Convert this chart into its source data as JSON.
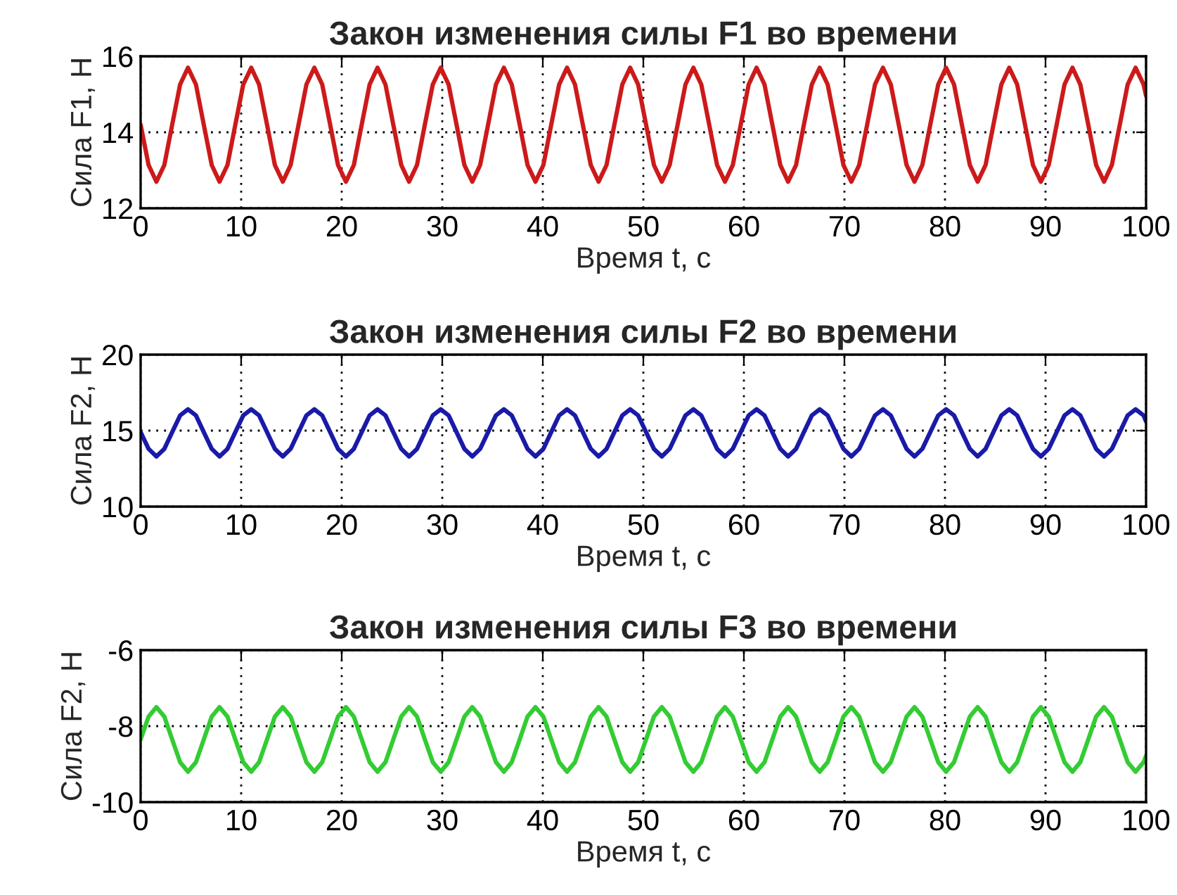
{
  "chart_data": [
    {
      "type": "line",
      "title": "Закон изменения силы F1 во времени",
      "xlabel": "Время t, c",
      "ylabel": "Сила F1, Н",
      "x": [
        0,
        0.79,
        1.57,
        2.36,
        3.14,
        3.93,
        4.71,
        5.5,
        6.28,
        7.07,
        7.85,
        8.64,
        9.42,
        10.21,
        11.0,
        11.78,
        12.57,
        13.35,
        14.14,
        14.92,
        15.71,
        16.49,
        17.28,
        18.06,
        18.85,
        19.63,
        20.42,
        21.21,
        21.99,
        22.78,
        23.56,
        24.35,
        25.13,
        25.92,
        26.7,
        27.49,
        28.27,
        29.06,
        29.85,
        30.63,
        31.42,
        32.2,
        32.99,
        33.77,
        34.56,
        35.34,
        36.13,
        36.91,
        37.7,
        38.48,
        39.27,
        40.06,
        40.84,
        41.63,
        42.41,
        43.2,
        43.98,
        44.77,
        45.55,
        46.34,
        47.12,
        47.91,
        48.69,
        49.48,
        50.27,
        51.05,
        51.84,
        52.62,
        53.41,
        54.19,
        54.98,
        55.76,
        56.55,
        57.33,
        58.12,
        58.9,
        59.69,
        60.48,
        61.26,
        62.05,
        62.83,
        63.62,
        64.4,
        65.19,
        65.97,
        66.76,
        67.54,
        68.33,
        69.12,
        69.9,
        70.69,
        71.47,
        72.26,
        73.04,
        73.83,
        74.61,
        75.4,
        76.18,
        76.97,
        77.75,
        78.54,
        79.33,
        80.11,
        80.9,
        81.68,
        82.47,
        83.25,
        84.04,
        84.82,
        85.61,
        86.39,
        87.18,
        87.96,
        88.75,
        89.54,
        90.32,
        91.11,
        91.89,
        92.68,
        93.46,
        94.25,
        95.03,
        95.82,
        96.6,
        97.39,
        98.17,
        98.96,
        99.75,
        100
      ],
      "series": [
        {
          "color": "#cc1a1a",
          "values": [
            14.2,
            13.14,
            12.7,
            13.14,
            14.2,
            15.26,
            15.7,
            15.26,
            14.2,
            13.14,
            12.7,
            13.14,
            14.2,
            15.26,
            15.7,
            15.26,
            14.2,
            13.14,
            12.7,
            13.14,
            14.2,
            15.26,
            15.7,
            15.26,
            14.2,
            13.14,
            12.7,
            13.14,
            14.2,
            15.26,
            15.7,
            15.26,
            14.2,
            13.14,
            12.7,
            13.14,
            14.2,
            15.26,
            15.7,
            15.26,
            14.2,
            13.14,
            12.7,
            13.14,
            14.2,
            15.26,
            15.7,
            15.26,
            14.2,
            13.14,
            12.7,
            13.14,
            14.2,
            15.26,
            15.7,
            15.26,
            14.2,
            13.14,
            12.7,
            13.14,
            14.2,
            15.26,
            15.7,
            15.26,
            14.2,
            13.14,
            12.7,
            13.14,
            14.2,
            15.26,
            15.7,
            15.26,
            14.2,
            13.14,
            12.7,
            13.14,
            14.2,
            15.26,
            15.7,
            15.26,
            14.2,
            13.14,
            12.7,
            13.14,
            14.2,
            15.26,
            15.7,
            15.26,
            14.2,
            13.14,
            12.7,
            13.14,
            14.2,
            15.26,
            15.7,
            15.26,
            14.2,
            13.14,
            12.7,
            13.14,
            14.2,
            15.26,
            15.7,
            15.26,
            14.2,
            13.14,
            12.7,
            13.14,
            14.2,
            15.26,
            15.7,
            15.26,
            14.2,
            13.14,
            12.7,
            13.14,
            14.2,
            15.26,
            15.7,
            15.26,
            14.2,
            13.14,
            12.7,
            13.14,
            14.2,
            15.26,
            15.7,
            15.26,
            14.96
          ]
        }
      ],
      "xlim": [
        0,
        100
      ],
      "ylim": [
        12,
        16
      ],
      "xticks": [
        0,
        10,
        20,
        30,
        40,
        50,
        60,
        70,
        80,
        90,
        100
      ],
      "yticks": [
        12,
        14,
        16
      ],
      "grid": true,
      "line_style": "solid"
    },
    {
      "type": "line",
      "title": "Закон изменения силы F2 во времени",
      "xlabel": "Время t, c",
      "ylabel": "Сила F2, Н",
      "x": [
        0,
        0.79,
        1.57,
        2.36,
        3.14,
        3.93,
        4.71,
        5.5,
        6.28,
        7.07,
        7.85,
        8.64,
        9.42,
        10.21,
        11.0,
        11.78,
        12.57,
        13.35,
        14.14,
        14.92,
        15.71,
        16.49,
        17.28,
        18.06,
        18.85,
        19.63,
        20.42,
        21.21,
        21.99,
        22.78,
        23.56,
        24.35,
        25.13,
        25.92,
        26.7,
        27.49,
        28.27,
        29.06,
        29.85,
        30.63,
        31.42,
        32.2,
        32.99,
        33.77,
        34.56,
        35.34,
        36.13,
        36.91,
        37.7,
        38.48,
        39.27,
        40.06,
        40.84,
        41.63,
        42.41,
        43.2,
        43.98,
        44.77,
        45.55,
        46.34,
        47.12,
        47.91,
        48.69,
        49.48,
        50.27,
        51.05,
        51.84,
        52.62,
        53.41,
        54.19,
        54.98,
        55.76,
        56.55,
        57.33,
        58.12,
        58.9,
        59.69,
        60.48,
        61.26,
        62.05,
        62.83,
        63.62,
        64.4,
        65.19,
        65.97,
        66.76,
        67.54,
        68.33,
        69.12,
        69.9,
        70.69,
        71.47,
        72.26,
        73.04,
        73.83,
        74.61,
        75.4,
        76.18,
        76.97,
        77.75,
        78.54,
        79.33,
        80.11,
        80.9,
        81.68,
        82.47,
        83.25,
        84.04,
        84.82,
        85.61,
        86.39,
        87.18,
        87.96,
        88.75,
        89.54,
        90.32,
        91.11,
        91.89,
        92.68,
        93.46,
        94.25,
        95.03,
        95.82,
        96.6,
        97.39,
        98.17,
        98.96,
        99.75,
        100
      ],
      "series": [
        {
          "color": "#1a1aa8",
          "values": [
            14.9,
            13.8,
            13.3,
            13.8,
            14.9,
            16.0,
            16.4,
            16.0,
            14.9,
            13.8,
            13.3,
            13.8,
            14.9,
            16.0,
            16.4,
            16.0,
            14.9,
            13.8,
            13.3,
            13.8,
            14.9,
            16.0,
            16.4,
            16.0,
            14.9,
            13.8,
            13.3,
            13.8,
            14.9,
            16.0,
            16.4,
            16.0,
            14.9,
            13.8,
            13.3,
            13.8,
            14.9,
            16.0,
            16.4,
            16.0,
            14.9,
            13.8,
            13.3,
            13.8,
            14.9,
            16.0,
            16.4,
            16.0,
            14.9,
            13.8,
            13.3,
            13.8,
            14.9,
            16.0,
            16.4,
            16.0,
            14.9,
            13.8,
            13.3,
            13.8,
            14.9,
            16.0,
            16.4,
            16.0,
            14.9,
            13.8,
            13.3,
            13.8,
            14.9,
            16.0,
            16.4,
            16.0,
            14.9,
            13.8,
            13.3,
            13.8,
            14.9,
            16.0,
            16.4,
            16.0,
            14.9,
            13.8,
            13.3,
            13.8,
            14.9,
            16.0,
            16.4,
            16.0,
            14.9,
            13.8,
            13.3,
            13.8,
            14.9,
            16.0,
            16.4,
            16.0,
            14.9,
            13.8,
            13.3,
            13.8,
            14.9,
            16.0,
            16.4,
            16.0,
            14.9,
            13.8,
            13.3,
            13.8,
            14.9,
            16.0,
            16.4,
            16.0,
            14.9,
            13.8,
            13.3,
            13.8,
            14.9,
            16.0,
            16.4,
            16.0,
            14.9,
            13.8,
            13.3,
            13.8,
            14.9,
            16.0,
            16.4,
            16.0,
            15.6
          ]
        }
      ],
      "xlim": [
        0,
        100
      ],
      "ylim": [
        10,
        20
      ],
      "xticks": [
        0,
        10,
        20,
        30,
        40,
        50,
        60,
        70,
        80,
        90,
        100
      ],
      "yticks": [
        10,
        15,
        20
      ],
      "grid": true,
      "line_style": "solid"
    },
    {
      "type": "line",
      "title": "Закон изменения силы F3 во времени",
      "xlabel": "Время t, c",
      "ylabel": "Сила F2, Н",
      "x": [
        0,
        0.79,
        1.57,
        2.36,
        3.14,
        3.93,
        4.71,
        5.5,
        6.28,
        7.07,
        7.85,
        8.64,
        9.42,
        10.21,
        11.0,
        11.78,
        12.57,
        13.35,
        14.14,
        14.92,
        15.71,
        16.49,
        17.28,
        18.06,
        18.85,
        19.63,
        20.42,
        21.21,
        21.99,
        22.78,
        23.56,
        24.35,
        25.13,
        25.92,
        26.7,
        27.49,
        28.27,
        29.06,
        29.85,
        30.63,
        31.42,
        32.2,
        32.99,
        33.77,
        34.56,
        35.34,
        36.13,
        36.91,
        37.7,
        38.48,
        39.27,
        40.06,
        40.84,
        41.63,
        42.41,
        43.2,
        43.98,
        44.77,
        45.55,
        46.34,
        47.12,
        47.91,
        48.69,
        49.48,
        50.27,
        51.05,
        51.84,
        52.62,
        53.41,
        54.19,
        54.98,
        55.76,
        56.55,
        57.33,
        58.12,
        58.9,
        59.69,
        60.48,
        61.26,
        62.05,
        62.83,
        63.62,
        64.4,
        65.19,
        65.97,
        66.76,
        67.54,
        68.33,
        69.12,
        69.9,
        70.69,
        71.47,
        72.26,
        73.04,
        73.83,
        74.61,
        75.4,
        76.18,
        76.97,
        77.75,
        78.54,
        79.33,
        80.11,
        80.9,
        81.68,
        82.47,
        83.25,
        84.04,
        84.82,
        85.61,
        86.39,
        87.18,
        87.96,
        88.75,
        89.54,
        90.32,
        91.11,
        91.89,
        92.68,
        93.46,
        94.25,
        95.03,
        95.82,
        96.6,
        97.39,
        98.17,
        98.96,
        99.75,
        100
      ],
      "series": [
        {
          "color": "#33cc33",
          "values": [
            -8.35,
            -7.75,
            -7.5,
            -7.75,
            -8.35,
            -8.95,
            -9.2,
            -8.95,
            -8.35,
            -7.75,
            -7.5,
            -7.75,
            -8.35,
            -8.95,
            -9.2,
            -8.95,
            -8.35,
            -7.75,
            -7.5,
            -7.75,
            -8.35,
            -8.95,
            -9.2,
            -8.95,
            -8.35,
            -7.75,
            -7.5,
            -7.75,
            -8.35,
            -8.95,
            -9.2,
            -8.95,
            -8.35,
            -7.75,
            -7.5,
            -7.75,
            -8.35,
            -8.95,
            -9.2,
            -8.95,
            -8.35,
            -7.75,
            -7.5,
            -7.75,
            -8.35,
            -8.95,
            -9.2,
            -8.95,
            -8.35,
            -7.75,
            -7.5,
            -7.75,
            -8.35,
            -8.95,
            -9.2,
            -8.95,
            -8.35,
            -7.75,
            -7.5,
            -7.75,
            -8.35,
            -8.95,
            -9.2,
            -8.95,
            -8.35,
            -7.75,
            -7.5,
            -7.75,
            -8.35,
            -8.95,
            -9.2,
            -8.95,
            -8.35,
            -7.75,
            -7.5,
            -7.75,
            -8.35,
            -8.95,
            -9.2,
            -8.95,
            -8.35,
            -7.75,
            -7.5,
            -7.75,
            -8.35,
            -8.95,
            -9.2,
            -8.95,
            -8.35,
            -7.75,
            -7.5,
            -7.75,
            -8.35,
            -8.95,
            -9.2,
            -8.95,
            -8.35,
            -7.75,
            -7.5,
            -7.75,
            -8.35,
            -8.95,
            -9.2,
            -8.95,
            -8.35,
            -7.75,
            -7.5,
            -7.75,
            -8.35,
            -8.95,
            -9.2,
            -8.95,
            -8.35,
            -7.75,
            -7.5,
            -7.75,
            -8.35,
            -8.95,
            -9.2,
            -8.95,
            -8.35,
            -7.75,
            -7.5,
            -7.75,
            -8.35,
            -8.95,
            -9.2,
            -8.95,
            -8.78
          ]
        }
      ],
      "xlim": [
        0,
        100
      ],
      "ylim": [
        -10,
        -6
      ],
      "xticks": [
        0,
        10,
        20,
        30,
        40,
        50,
        60,
        70,
        80,
        90,
        100
      ],
      "yticks": [
        -10,
        -8,
        -6
      ],
      "grid": true,
      "line_style": "solid"
    }
  ]
}
